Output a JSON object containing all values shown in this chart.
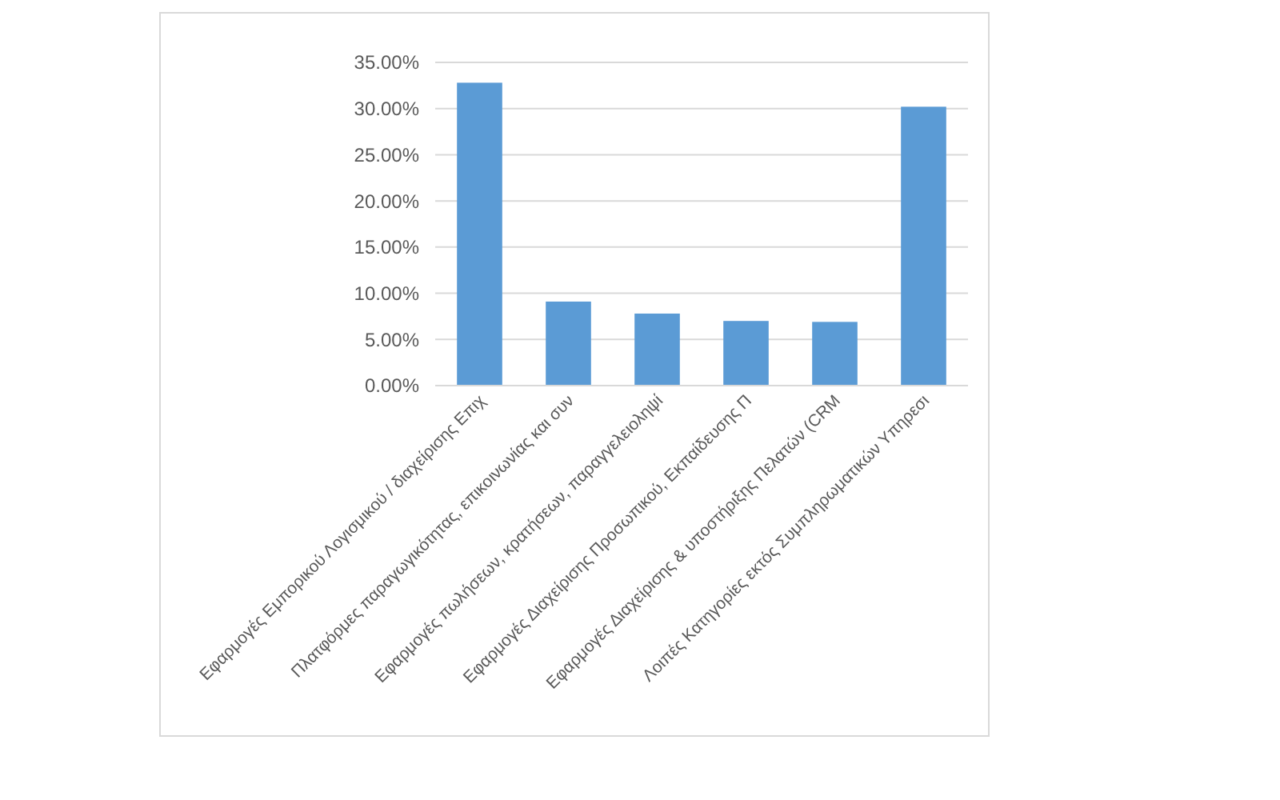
{
  "chart_data": {
    "type": "bar",
    "categories": [
      "Εφαρμογές Εμπορικού Λογισμικού / διαχείρισης Επιχ",
      "Πλατφόρμες παραγωγικότητας, επικοινωνίας και συν",
      "Εφαρμογές πωλήσεων, κρατήσεων, παραγγελειοληψί",
      "Εφαρμογές Διαχείρισης Προσωπικού, Εκπαίδευσης Π",
      "Εφαρμογές Διαχείρισης & υποστήριξης Πελατών (CRM",
      "Λοιπές Κατηγορίες εκτός Συμπληρωματικών Υπηρεσι"
    ],
    "values": [
      32.8,
      9.1,
      7.8,
      7.0,
      6.9,
      30.2
    ],
    "color": "#5b9bd5",
    "ylim": [
      0,
      35
    ],
    "yticks": [
      {
        "value": 0,
        "label": "0.00%"
      },
      {
        "value": 5,
        "label": "5.00%"
      },
      {
        "value": 10,
        "label": "10.00%"
      },
      {
        "value": 15,
        "label": "15.00%"
      },
      {
        "value": 20,
        "label": "20.00%"
      },
      {
        "value": 25,
        "label": "25.00%"
      },
      {
        "value": 30,
        "label": "30.00%"
      },
      {
        "value": 35,
        "label": "35.00%"
      }
    ],
    "grid": "y"
  }
}
